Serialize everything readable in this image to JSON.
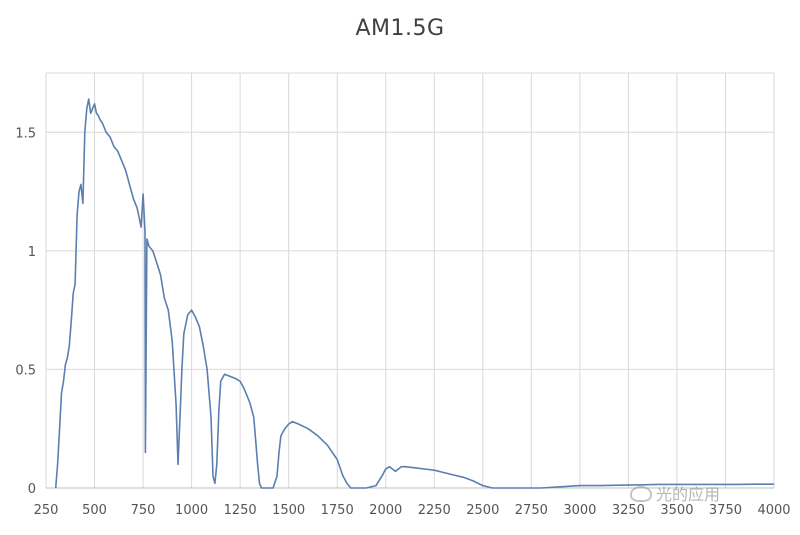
{
  "chart_data": {
    "type": "line",
    "title": "AM1.5G",
    "xlabel": "",
    "ylabel": "",
    "xlim": [
      250,
      4000
    ],
    "ylim": [
      0,
      1.75
    ],
    "x_ticks": [
      250,
      500,
      750,
      1000,
      1250,
      1500,
      1750,
      2000,
      2250,
      2500,
      2750,
      3000,
      3250,
      3500,
      3750,
      4000
    ],
    "y_ticks": [
      0,
      0.5,
      1,
      1.5
    ],
    "y_tick_labels": [
      "0",
      "0.5",
      "1",
      "1.5"
    ],
    "grid": true,
    "line_color": "#5b7fb0",
    "series": [
      {
        "x": [
          300,
          310,
          320,
          330,
          340,
          350,
          360,
          370,
          380,
          390,
          400,
          410,
          420,
          430,
          440,
          450,
          460,
          470,
          480,
          490,
          500,
          510,
          520,
          530,
          540,
          550,
          560,
          570,
          580,
          590,
          600,
          620,
          640,
          660,
          680,
          700,
          720,
          740,
          750,
          760,
          762,
          770,
          780,
          800,
          820,
          840,
          860,
          880,
          900,
          920,
          930,
          940,
          950,
          960,
          980,
          1000,
          1020,
          1040,
          1060,
          1080,
          1100,
          1110,
          1120,
          1130,
          1140,
          1150,
          1170,
          1200,
          1230,
          1250,
          1270,
          1300,
          1320,
          1330,
          1340,
          1350,
          1360,
          1370,
          1380,
          1400,
          1420,
          1440,
          1450,
          1460,
          1480,
          1500,
          1520,
          1550,
          1600,
          1650,
          1700,
          1750,
          1780,
          1800,
          1820,
          1850,
          1900,
          1950,
          1980,
          2000,
          2020,
          2050,
          2080,
          2100,
          2150,
          2200,
          2250,
          2300,
          2350,
          2400,
          2450,
          2500,
          2550,
          2600,
          2700,
          2800,
          2900,
          3000,
          3100,
          3200,
          3300,
          3400,
          3500,
          3600,
          3700,
          3800,
          3900,
          4000
        ],
        "y": [
          0.0,
          0.1,
          0.25,
          0.4,
          0.45,
          0.52,
          0.55,
          0.6,
          0.7,
          0.82,
          0.86,
          1.15,
          1.25,
          1.28,
          1.2,
          1.5,
          1.6,
          1.64,
          1.58,
          1.6,
          1.62,
          1.58,
          1.57,
          1.55,
          1.54,
          1.52,
          1.5,
          1.49,
          1.48,
          1.46,
          1.44,
          1.42,
          1.38,
          1.34,
          1.28,
          1.22,
          1.18,
          1.1,
          1.24,
          1.08,
          0.15,
          1.05,
          1.02,
          1.0,
          0.95,
          0.9,
          0.8,
          0.75,
          0.62,
          0.35,
          0.1,
          0.3,
          0.5,
          0.65,
          0.73,
          0.75,
          0.72,
          0.68,
          0.6,
          0.5,
          0.3,
          0.05,
          0.02,
          0.1,
          0.32,
          0.45,
          0.48,
          0.47,
          0.46,
          0.45,
          0.42,
          0.36,
          0.3,
          0.2,
          0.1,
          0.02,
          0.0,
          0.0,
          0.0,
          0.0,
          0.0,
          0.05,
          0.15,
          0.22,
          0.25,
          0.27,
          0.28,
          0.27,
          0.25,
          0.22,
          0.18,
          0.12,
          0.05,
          0.02,
          0.0,
          0.0,
          0.0,
          0.01,
          0.05,
          0.08,
          0.09,
          0.07,
          0.09,
          0.09,
          0.085,
          0.08,
          0.075,
          0.065,
          0.055,
          0.045,
          0.03,
          0.01,
          0.0,
          0.0,
          0.0,
          0.0,
          0.005,
          0.01,
          0.01,
          0.012,
          0.013,
          0.015,
          0.015,
          0.015,
          0.015,
          0.015,
          0.016,
          0.016
        ]
      }
    ]
  },
  "watermark": {
    "text": "光的应用"
  }
}
